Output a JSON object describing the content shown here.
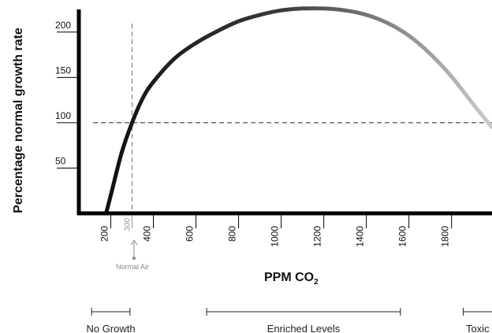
{
  "chart_data": {
    "type": "line",
    "ylabel": "Percentage normal growth rate",
    "xlabel_main": "PPM CO",
    "xlabel_sub": "2",
    "xlim": [
      50,
      1990
    ],
    "ylim": [
      0,
      225
    ],
    "x_ticks": [
      200,
      400,
      600,
      800,
      1000,
      1200,
      1400,
      1600,
      1800
    ],
    "x_tick_labels": [
      "200",
      "400",
      "600",
      "800",
      "1000",
      "1200",
      "1400",
      "1600",
      "1800"
    ],
    "y_ticks": [
      50,
      100,
      150,
      200
    ],
    "y_tick_labels": [
      "50",
      "100",
      "150",
      "200"
    ],
    "reference_x": 300,
    "reference_x_label": "300",
    "reference_y": 100,
    "annotation": "Normal Air",
    "series": [
      {
        "color_start": "#111111",
        "color_end": "#cccccc",
        "x": [
          180,
          200,
          250,
          300,
          350,
          400,
          500,
          600,
          700,
          800,
          900,
          1000,
          1100,
          1200,
          1300,
          1400,
          1500,
          1600,
          1700,
          1800,
          1900,
          1990
        ],
        "y": [
          2,
          20,
          66,
          100,
          127,
          145,
          171,
          188,
          201,
          212,
          219,
          224,
          226,
          226,
          224,
          219,
          210,
          196,
          176,
          151,
          121,
          95
        ]
      }
    ]
  },
  "ranges": [
    {
      "label": "No Growth",
      "from": 110,
      "to": 290
    },
    {
      "label": "Enriched Levels",
      "from": 650,
      "to": 1560
    },
    {
      "label": "Toxic",
      "from": 1855,
      "to": 1990
    }
  ]
}
